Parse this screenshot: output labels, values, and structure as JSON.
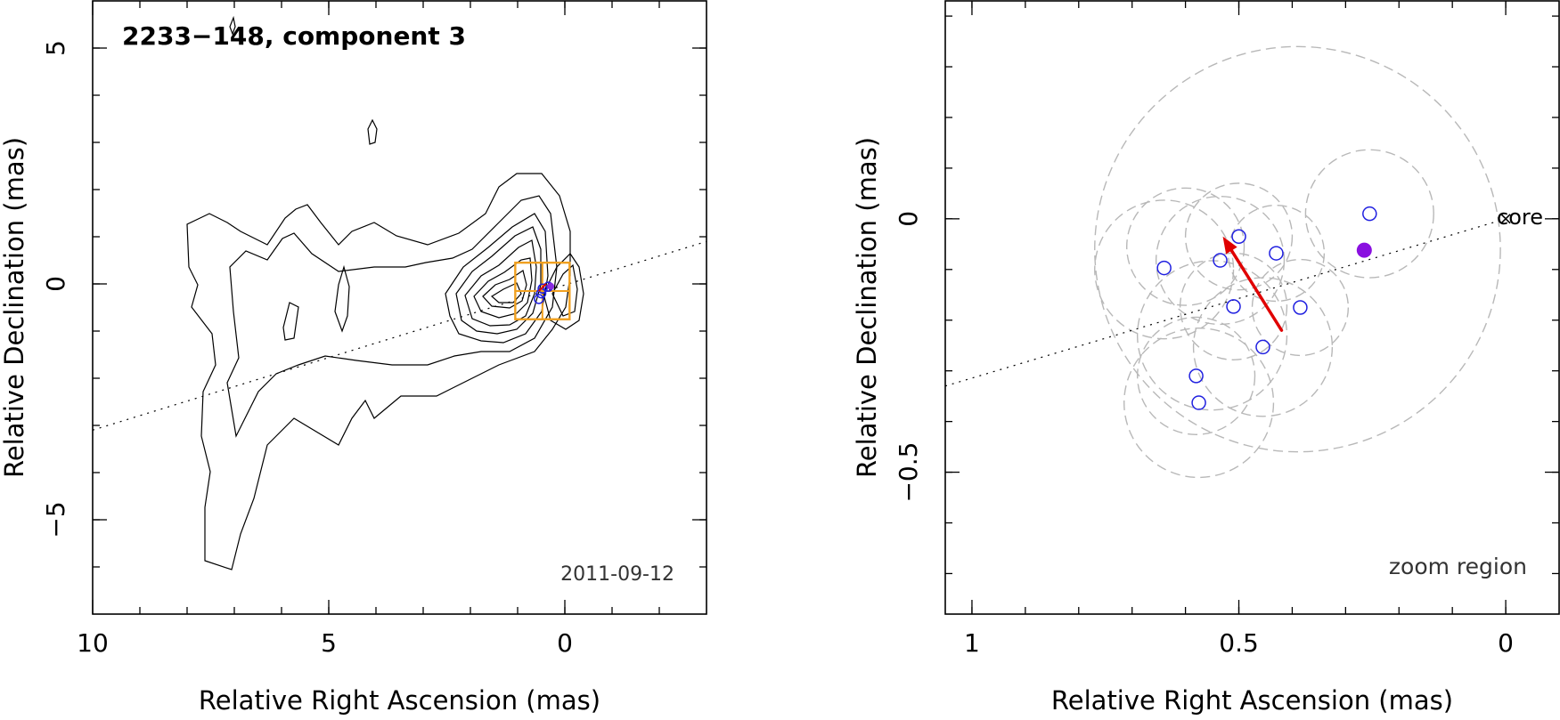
{
  "chart_data": [
    {
      "type": "contour",
      "title": "2233−148, component 3",
      "date_label": "2011-09-12",
      "xlabel": "Relative Right Ascension (mas)",
      "ylabel": "Relative Declination (mas)",
      "xlim": [
        10,
        -3
      ],
      "ylim": [
        -7,
        6
      ],
      "x_ticks": [
        {
          "v": 10,
          "label": "10"
        },
        {
          "v": 5,
          "label": "5"
        },
        {
          "v": 0,
          "label": "0"
        }
      ],
      "y_ticks": [
        {
          "v": 5,
          "label": "5"
        },
        {
          "v": 0,
          "label": "0"
        },
        {
          "v": -5,
          "label": "−5"
        }
      ],
      "jet_axis": [
        [
          10,
          -3.1
        ],
        [
          -3,
          0.9
        ]
      ],
      "contour_peaks": [
        {
          "x": 0,
          "y": 0.05
        },
        {
          "x": 1.55,
          "y": -0.45
        }
      ],
      "zoom_box": {
        "x": [
          1.05,
          -0.1
        ],
        "y": [
          -0.75,
          0.45
        ]
      },
      "components": [
        {
          "x": 0.35,
          "y": -0.06
        },
        {
          "x": 0.47,
          "y": -0.1
        },
        {
          "x": 0.55,
          "y": -0.32
        },
        {
          "x": 0.5,
          "y": -0.2
        }
      ]
    },
    {
      "type": "scatter",
      "zoom_label": "zoom region",
      "core_label": "core",
      "xlabel": "Relative Right Ascension (mas)",
      "ylabel": "Relative Declination (mas)",
      "xlim": [
        1.05,
        -0.1
      ],
      "ylim": [
        -0.78,
        0.43
      ],
      "x_ticks": [
        {
          "v": 1,
          "label": "1"
        },
        {
          "v": 0.5,
          "label": "0.5"
        },
        {
          "v": 0,
          "label": "0"
        }
      ],
      "y_ticks": [
        {
          "v": 0,
          "label": "0"
        },
        {
          "v": -0.5,
          "label": "−0.5"
        }
      ],
      "core": {
        "x": 0,
        "y": 0
      },
      "jet_axis": [
        [
          1.05,
          -0.33
        ],
        [
          0,
          0
        ]
      ],
      "points": [
        {
          "x": 0.255,
          "y": 0.01
        },
        {
          "x": 0.5,
          "y": -0.035
        },
        {
          "x": 0.535,
          "y": -0.082
        },
        {
          "x": 0.43,
          "y": -0.068
        },
        {
          "x": 0.64,
          "y": -0.097
        },
        {
          "x": 0.51,
          "y": -0.173
        },
        {
          "x": 0.385,
          "y": -0.175
        },
        {
          "x": 0.455,
          "y": -0.253
        },
        {
          "x": 0.58,
          "y": -0.31
        },
        {
          "x": 0.575,
          "y": -0.363
        }
      ],
      "mean_position": {
        "x": 0.265,
        "y": -0.062
      },
      "motion_arrow": {
        "from": {
          "x": 0.42,
          "y": -0.22
        },
        "to": {
          "x": 0.53,
          "y": -0.035
        }
      },
      "uncertainty_circles": [
        {
          "x": 0.64,
          "y": -0.1,
          "r": 0.13
        },
        {
          "x": 0.5,
          "y": -0.035,
          "r": 0.1
        },
        {
          "x": 0.535,
          "y": -0.082,
          "r": 0.12
        },
        {
          "x": 0.51,
          "y": -0.173,
          "r": 0.1
        },
        {
          "x": 0.43,
          "y": -0.068,
          "r": 0.09
        },
        {
          "x": 0.385,
          "y": -0.175,
          "r": 0.09
        },
        {
          "x": 0.455,
          "y": -0.253,
          "r": 0.13
        },
        {
          "x": 0.58,
          "y": -0.31,
          "r": 0.11
        },
        {
          "x": 0.575,
          "y": -0.363,
          "r": 0.14
        },
        {
          "x": 0.255,
          "y": 0.01,
          "r": 0.12
        },
        {
          "x": 0.39,
          "y": -0.06,
          "r": 0.38
        },
        {
          "x": 0.55,
          "y": -0.23,
          "r": 0.14
        },
        {
          "x": 0.6,
          "y": -0.055,
          "r": 0.11
        }
      ]
    }
  ]
}
